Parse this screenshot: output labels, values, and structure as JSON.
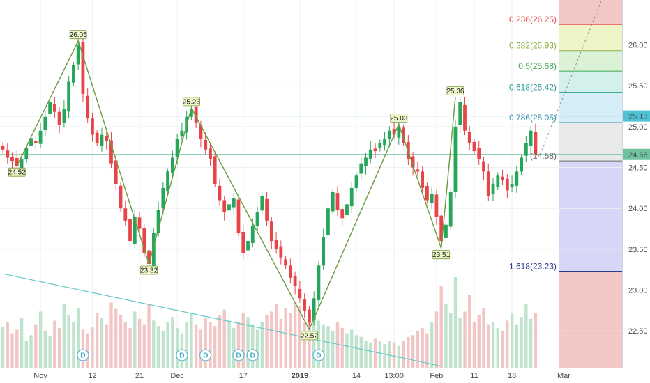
{
  "chart_data": {
    "type": "candlestick",
    "x_tick_labels": [
      {
        "label": "Nov",
        "index": 8
      },
      {
        "label": "12",
        "index": 19
      },
      {
        "label": "21",
        "index": 29
      },
      {
        "label": "Dec",
        "index": 37
      },
      {
        "label": "17",
        "index": 51
      },
      {
        "label": "2019",
        "index": 63
      },
      {
        "label": "14",
        "index": 75
      },
      {
        "label": "13:00",
        "index": 83
      },
      {
        "label": "Feb",
        "index": 92
      },
      {
        "label": "11",
        "index": 100
      },
      {
        "label": "18",
        "index": 108
      },
      {
        "label": "Mar",
        "index": 119
      }
    ],
    "y_tick_labels": [
      "26.00",
      "25.50",
      "25.00",
      "24.50",
      "24.00",
      "23.50",
      "23.00",
      "22.50"
    ],
    "y_ticks": [
      26.0,
      25.5,
      25.0,
      24.5,
      24.0,
      23.5,
      23.0,
      22.5
    ],
    "ylim": [
      22.05,
      26.55
    ],
    "grid": true,
    "close_series": [
      24.72,
      24.62,
      24.58,
      24.52,
      24.6,
      24.74,
      24.86,
      24.8,
      24.95,
      25.12,
      25.3,
      25.18,
      25.02,
      25.22,
      25.55,
      25.75,
      26.0,
      25.4,
      25.1,
      24.9,
      24.8,
      24.9,
      24.82,
      24.55,
      24.3,
      24.0,
      23.85,
      23.6,
      23.9,
      23.75,
      23.45,
      23.32,
      23.7,
      23.98,
      24.25,
      24.45,
      24.62,
      24.85,
      24.95,
      25.12,
      25.22,
      25.05,
      24.85,
      24.72,
      24.6,
      24.3,
      24.1,
      23.95,
      24.05,
      24.12,
      23.7,
      23.45,
      23.6,
      23.78,
      23.95,
      24.15,
      23.85,
      23.6,
      23.5,
      23.4,
      23.3,
      23.15,
      23.05,
      22.9,
      22.75,
      22.6,
      22.9,
      23.3,
      23.65,
      24.0,
      24.2,
      23.98,
      23.88,
      24.05,
      24.25,
      24.4,
      24.55,
      24.62,
      24.72,
      24.7,
      24.8,
      24.85,
      24.95,
      24.9,
      25.0,
      24.8,
      24.6,
      24.5,
      24.45,
      24.25,
      24.1,
      24.18,
      23.9,
      23.6,
      23.8,
      24.2,
      25.0,
      25.3,
      24.95,
      24.8,
      24.7,
      24.6,
      24.45,
      24.15,
      24.3,
      24.4,
      24.35,
      24.22,
      24.3,
      24.45,
      24.62,
      24.8,
      24.95,
      24.66
    ],
    "volume_series": [
      0.45,
      0.5,
      0.38,
      0.42,
      0.55,
      0.3,
      0.36,
      0.48,
      0.62,
      0.4,
      0.35,
      0.52,
      0.44,
      0.7,
      0.58,
      0.5,
      0.66,
      0.42,
      0.38,
      0.45,
      0.6,
      0.55,
      0.48,
      0.72,
      0.65,
      0.58,
      0.5,
      0.44,
      0.62,
      0.54,
      0.48,
      0.7,
      0.52,
      0.46,
      0.4,
      0.5,
      0.56,
      0.44,
      0.38,
      0.5,
      0.6,
      0.48,
      0.42,
      0.55,
      0.5,
      0.46,
      0.58,
      0.64,
      0.52,
      0.44,
      0.5,
      0.6,
      0.56,
      0.48,
      0.42,
      0.5,
      0.58,
      0.62,
      0.7,
      0.54,
      0.66,
      0.6,
      0.72,
      0.68,
      0.5,
      0.56,
      0.6,
      0.52,
      0.48,
      0.46,
      0.4,
      0.5,
      0.44,
      0.38,
      0.42,
      0.36,
      0.34,
      0.3,
      0.28,
      0.32,
      0.3,
      0.26,
      0.3,
      0.28,
      0.24,
      0.3,
      0.34,
      0.36,
      0.4,
      0.44,
      0.38,
      0.5,
      0.62,
      0.9,
      0.7,
      0.6,
      1.0,
      0.55,
      0.62,
      0.8,
      0.5,
      0.58,
      0.66,
      0.48,
      0.5,
      0.44,
      0.4,
      0.52,
      0.6,
      0.48,
      0.56,
      0.7,
      0.54,
      0.6
    ],
    "zigzag": [
      {
        "index": 3,
        "value": 24.52,
        "label": "24.52",
        "pos": "below"
      },
      {
        "index": 16,
        "value": 26.05,
        "label": "26.05",
        "pos": "above"
      },
      {
        "index": 31,
        "value": 23.32,
        "label": "23.32",
        "pos": "below"
      },
      {
        "index": 40,
        "value": 25.23,
        "label": "25.23",
        "pos": "above"
      },
      {
        "index": 65,
        "value": 22.52,
        "label": "22.52",
        "pos": "below"
      },
      {
        "index": 84,
        "value": 25.03,
        "label": "25.03",
        "pos": "above"
      },
      {
        "index": 93,
        "value": 23.51,
        "label": "23.51",
        "pos": "below"
      },
      {
        "index": 96,
        "value": 25.36,
        "label": "25.36",
        "pos": "above"
      }
    ],
    "fibonacci": [
      {
        "label": "0.236(26.25)",
        "value": 26.25,
        "color": "#e84a4a"
      },
      {
        "label": "0.382(25.93)",
        "value": 25.93,
        "color": "#8db042"
      },
      {
        "label": "0.5(25.68)",
        "value": 25.68,
        "color": "#3faa55"
      },
      {
        "label": "0.618(25.42)",
        "value": 25.42,
        "color": "#2a9d8f"
      },
      {
        "label": "0.786(25.05)",
        "value": 25.05,
        "color": "#3a8fb0"
      },
      {
        "label": "(24.58)",
        "value": 24.58,
        "color": "#6a6a6a"
      },
      {
        "label": "1.618(23.23)",
        "value": 23.23,
        "color": "#2b3a8a"
      }
    ],
    "fib_zones": [
      {
        "from": 26.55,
        "to": 26.25,
        "color": "#f4c7c7"
      },
      {
        "from": 26.25,
        "to": 25.93,
        "color": "#eef3c8"
      },
      {
        "from": 25.93,
        "to": 25.68,
        "color": "#dcf2d6"
      },
      {
        "from": 25.68,
        "to": 25.42,
        "color": "#d4f0ea"
      },
      {
        "from": 25.42,
        "to": 25.05,
        "color": "#d6eef7"
      },
      {
        "from": 25.05,
        "to": 24.58,
        "color": "#e9e9e9"
      },
      {
        "from": 24.58,
        "to": 23.23,
        "color": "#d6d6f7"
      },
      {
        "from": 23.23,
        "to": 22.05,
        "color": "#f4c7c7"
      }
    ],
    "horizontal_lines": [
      {
        "value": 25.13,
        "label": "25.13",
        "color": "#4fc1d4"
      },
      {
        "value": 24.66,
        "label": "24.66",
        "color": "#6fc3a0"
      }
    ],
    "dividend_markers": [
      {
        "index": 17,
        "label": "D"
      },
      {
        "index": 38,
        "label": "D"
      },
      {
        "index": 43,
        "label": "D"
      },
      {
        "index": 50,
        "label": "D"
      },
      {
        "index": 53,
        "label": "D"
      },
      {
        "index": 67,
        "label": "D"
      }
    ],
    "trendline": {
      "from": {
        "index": 0,
        "value": 23.2
      },
      "to": {
        "index": 93,
        "value": 22.07
      },
      "color": "#66c8c8"
    },
    "projection_line": {
      "from": {
        "index": 114,
        "value": 24.66
      },
      "to": {
        "index": 127,
        "value": 26.55
      },
      "color": "#888888"
    }
  }
}
